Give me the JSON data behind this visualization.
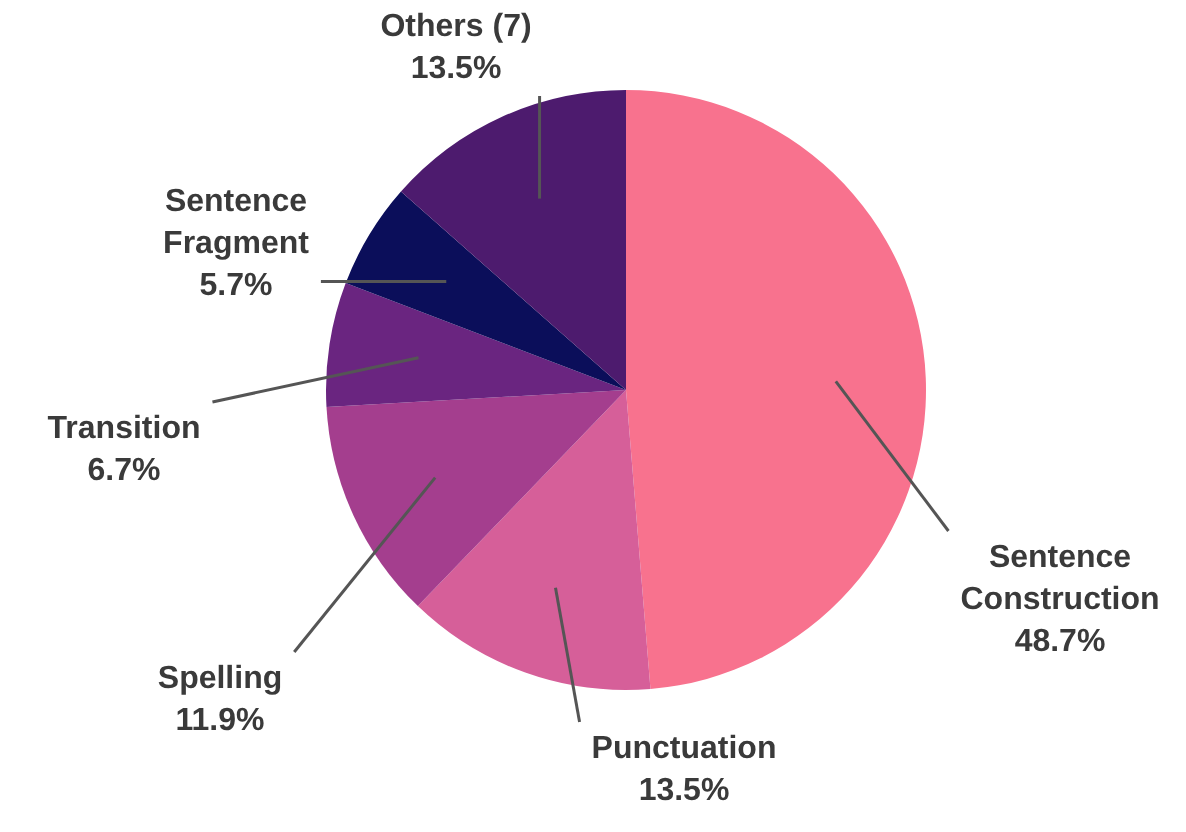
{
  "chart_data": {
    "type": "pie",
    "categories": [
      "Sentence Construction",
      "Punctuation",
      "Spelling",
      "Transition",
      "Sentence Fragment",
      "Others (7)"
    ],
    "values": [
      48.7,
      13.5,
      11.9,
      6.7,
      5.7,
      13.5
    ],
    "value_labels": [
      "48.7%",
      "13.5%",
      "11.9%",
      "6.7%",
      "5.7%",
      "13.5%"
    ],
    "colors": [
      "#f8728e",
      "#d65f99",
      "#a43e8e",
      "#6a2580",
      "#0b0e5a",
      "#4d1b6e"
    ],
    "legend": false
  }
}
